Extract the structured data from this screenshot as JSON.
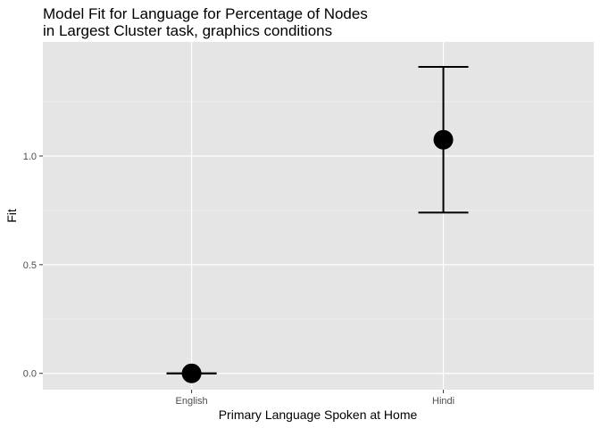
{
  "chart_data": {
    "type": "scatter",
    "title_lines": [
      "Model Fit for Language for Percentage of Nodes",
      "in Largest Cluster task, graphics conditions"
    ],
    "xlabel": "Primary Language Spoken at Home",
    "ylabel": "Fit",
    "categories": [
      "English",
      "Hindi"
    ],
    "points": [
      {
        "x": "English",
        "fit": 0.0,
        "lower": 0.0,
        "upper": 0.0
      },
      {
        "x": "Hindi",
        "fit": 1.075,
        "lower": 0.74,
        "upper": 1.41
      }
    ],
    "y_ticks": [
      0.0,
      0.5,
      1.0
    ],
    "y_tick_labels": [
      "0.0",
      "0.5",
      "1.0"
    ],
    "ylim": [
      -0.075,
      1.525
    ],
    "grid": true,
    "colors": {
      "panel_background": "#e5e5e5",
      "grid_major": "#ffffff",
      "grid_minor": "#f2f2f2",
      "marks": "#000000",
      "tick_text": "#4d4d4d"
    }
  }
}
